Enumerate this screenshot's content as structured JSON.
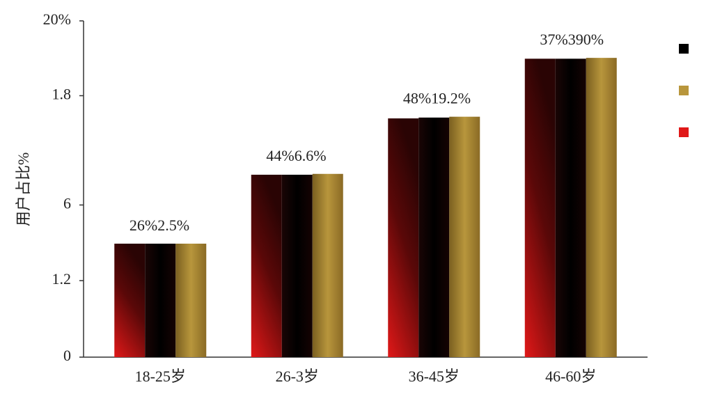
{
  "chart_data": {
    "type": "bar",
    "y_label": "用户占比%",
    "categories": [
      "18-25岁",
      "26-3岁",
      "36-45岁",
      "46-60岁"
    ],
    "series": [
      {
        "color": "#e01818",
        "values": [
          6.75,
          10.85,
          14.2,
          17.75
        ]
      },
      {
        "color": "#000000",
        "values": [
          6.75,
          10.85,
          14.25,
          17.75
        ]
      },
      {
        "color": "#b8963c",
        "values": [
          6.75,
          10.9,
          14.3,
          17.8
        ]
      }
    ],
    "legend_order": [
      1,
      2,
      0
    ],
    "annotations": [
      [
        "26%",
        "2.5%"
      ],
      [
        "44%",
        "6.6%"
      ],
      [
        "48%",
        "19.2%"
      ],
      [
        "37%",
        "390%"
      ]
    ],
    "ylim": [
      0,
      20
    ],
    "yticks": [
      0,
      {
        "value": 4.55,
        "label": "1.2"
      },
      {
        "value": 9.05,
        "label": "6"
      },
      {
        "value": 15.55,
        "label": "1.8"
      },
      {
        "value": 20,
        "label": "20%"
      }
    ],
    "legend": "right"
  }
}
